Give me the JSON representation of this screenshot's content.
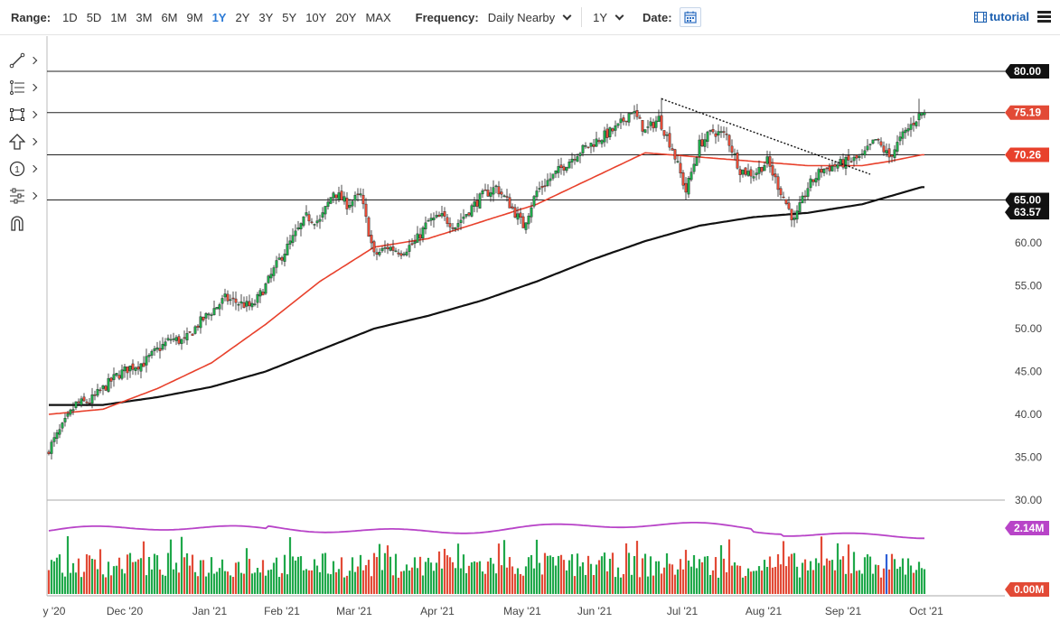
{
  "toolbar": {
    "range_label": "Range:",
    "ranges": [
      "1D",
      "5D",
      "1M",
      "3M",
      "6M",
      "9M",
      "1Y",
      "2Y",
      "3Y",
      "5Y",
      "10Y",
      "20Y",
      "MAX"
    ],
    "active_range": "1Y",
    "frequency_label": "Frequency:",
    "frequency_value": "Daily Nearby",
    "period_value": "1Y",
    "date_label": "Date:",
    "tutorial_label": "tutorial"
  },
  "tools": [
    "line-tool-icon",
    "fib-tool-icon",
    "shape-tool-icon",
    "arrow-tool-icon",
    "number-marker-icon",
    "measure-tool-icon",
    "magnet-icon"
  ],
  "colors": {
    "up": "#1fa84a",
    "down": "#e24a36",
    "ma_fast": "#e8412c",
    "ma_slow": "#111111",
    "rsi": "#b844c8",
    "vol_up": "#1fa84a",
    "vol_down": "#e24a36",
    "vol_highlight": "#2e5fd6"
  },
  "chart_data": {
    "type": "candlestick",
    "x_labels": [
      "y '20",
      "Dec '20",
      "Jan '21",
      "Feb '21",
      "Mar '21",
      "Apr '21",
      "May '21",
      "Jun '21",
      "Jul '21",
      "Aug '21",
      "Sep '21",
      "Oct '21"
    ],
    "y_ticks": [
      "30.00",
      "35.00",
      "40.00",
      "45.00",
      "50.00",
      "55.00",
      "60.00"
    ],
    "ylim": [
      30,
      82
    ],
    "close_anchors": [
      [
        0,
        36.0
      ],
      [
        5,
        38.5
      ],
      [
        10,
        41.2
      ],
      [
        15,
        41.5
      ],
      [
        20,
        43.0
      ],
      [
        25,
        44.5
      ],
      [
        30,
        45.5
      ],
      [
        35,
        46.0
      ],
      [
        40,
        47.5
      ],
      [
        45,
        48.8
      ],
      [
        50,
        48.5
      ],
      [
        55,
        50.5
      ],
      [
        60,
        52.0
      ],
      [
        65,
        53.5
      ],
      [
        70,
        53.0
      ],
      [
        75,
        52.5
      ],
      [
        80,
        55.0
      ],
      [
        85,
        58.0
      ],
      [
        90,
        60.5
      ],
      [
        95,
        63.0
      ],
      [
        100,
        62.5
      ],
      [
        105,
        66.0
      ],
      [
        110,
        64.5
      ],
      [
        115,
        65.5
      ],
      [
        120,
        58.5
      ],
      [
        125,
        59.5
      ],
      [
        130,
        59.0
      ],
      [
        135,
        60.0
      ],
      [
        140,
        62.5
      ],
      [
        145,
        63.0
      ],
      [
        150,
        62.0
      ],
      [
        155,
        63.8
      ],
      [
        160,
        65.5
      ],
      [
        165,
        66.5
      ],
      [
        170,
        64.5
      ],
      [
        175,
        62.0
      ],
      [
        180,
        66.0
      ],
      [
        185,
        67.5
      ],
      [
        190,
        69.0
      ],
      [
        195,
        70.5
      ],
      [
        200,
        71.5
      ],
      [
        205,
        72.5
      ],
      [
        210,
        73.5
      ],
      [
        215,
        75.5
      ],
      [
        220,
        73.0
      ],
      [
        225,
        74.5
      ],
      [
        230,
        71.0
      ],
      [
        235,
        66.0
      ],
      [
        240,
        71.5
      ],
      [
        245,
        73.0
      ],
      [
        250,
        72.5
      ],
      [
        255,
        68.5
      ],
      [
        260,
        68.0
      ],
      [
        265,
        69.5
      ],
      [
        270,
        66.0
      ],
      [
        275,
        62.5
      ],
      [
        280,
        66.5
      ],
      [
        285,
        68.5
      ],
      [
        290,
        69.0
      ],
      [
        295,
        69.5
      ],
      [
        300,
        70.0
      ],
      [
        305,
        72.0
      ],
      [
        310,
        70.0
      ],
      [
        315,
        72.5
      ],
      [
        320,
        74.5
      ],
      [
        322,
        75.19
      ]
    ],
    "ma_fast_anchors": [
      [
        0,
        40.0
      ],
      [
        20,
        40.6
      ],
      [
        40,
        43.0
      ],
      [
        60,
        46.0
      ],
      [
        80,
        50.5
      ],
      [
        100,
        55.5
      ],
      [
        120,
        59.5
      ],
      [
        140,
        60.5
      ],
      [
        160,
        62.5
      ],
      [
        180,
        64.5
      ],
      [
        200,
        67.5
      ],
      [
        220,
        70.5
      ],
      [
        240,
        70.0
      ],
      [
        260,
        69.5
      ],
      [
        280,
        69.0
      ],
      [
        300,
        69.0
      ],
      [
        310,
        69.5
      ],
      [
        322,
        70.26
      ]
    ],
    "ma_slow_anchors": [
      [
        0,
        41.1
      ],
      [
        20,
        41.1
      ],
      [
        40,
        42.0
      ],
      [
        60,
        43.2
      ],
      [
        80,
        45.0
      ],
      [
        100,
        47.5
      ],
      [
        120,
        50.0
      ],
      [
        140,
        51.5
      ],
      [
        160,
        53.3
      ],
      [
        180,
        55.5
      ],
      [
        200,
        58.0
      ],
      [
        220,
        60.2
      ],
      [
        240,
        62.0
      ],
      [
        260,
        63.0
      ],
      [
        280,
        63.5
      ],
      [
        300,
        64.5
      ],
      [
        322,
        66.5
      ]
    ],
    "price_tags": [
      {
        "label": "80.00",
        "value": 80.0,
        "style": "dark"
      },
      {
        "label": "75.19",
        "value": 75.19,
        "style": "down"
      },
      {
        "label": "70.26",
        "value": 70.26,
        "style": "ma_fast"
      },
      {
        "label": "65.00",
        "value": 65.0,
        "style": "dark"
      },
      {
        "label": "63.57",
        "value": 63.57,
        "style": "dark"
      }
    ],
    "horizontal_lines": [
      80.0,
      75.19,
      70.26,
      65.0
    ],
    "trendline": [
      [
        226,
        76.8
      ],
      [
        303,
        68.0
      ]
    ],
    "rsi_level_label": "2.14M",
    "volume_level_label": "0.00M"
  }
}
